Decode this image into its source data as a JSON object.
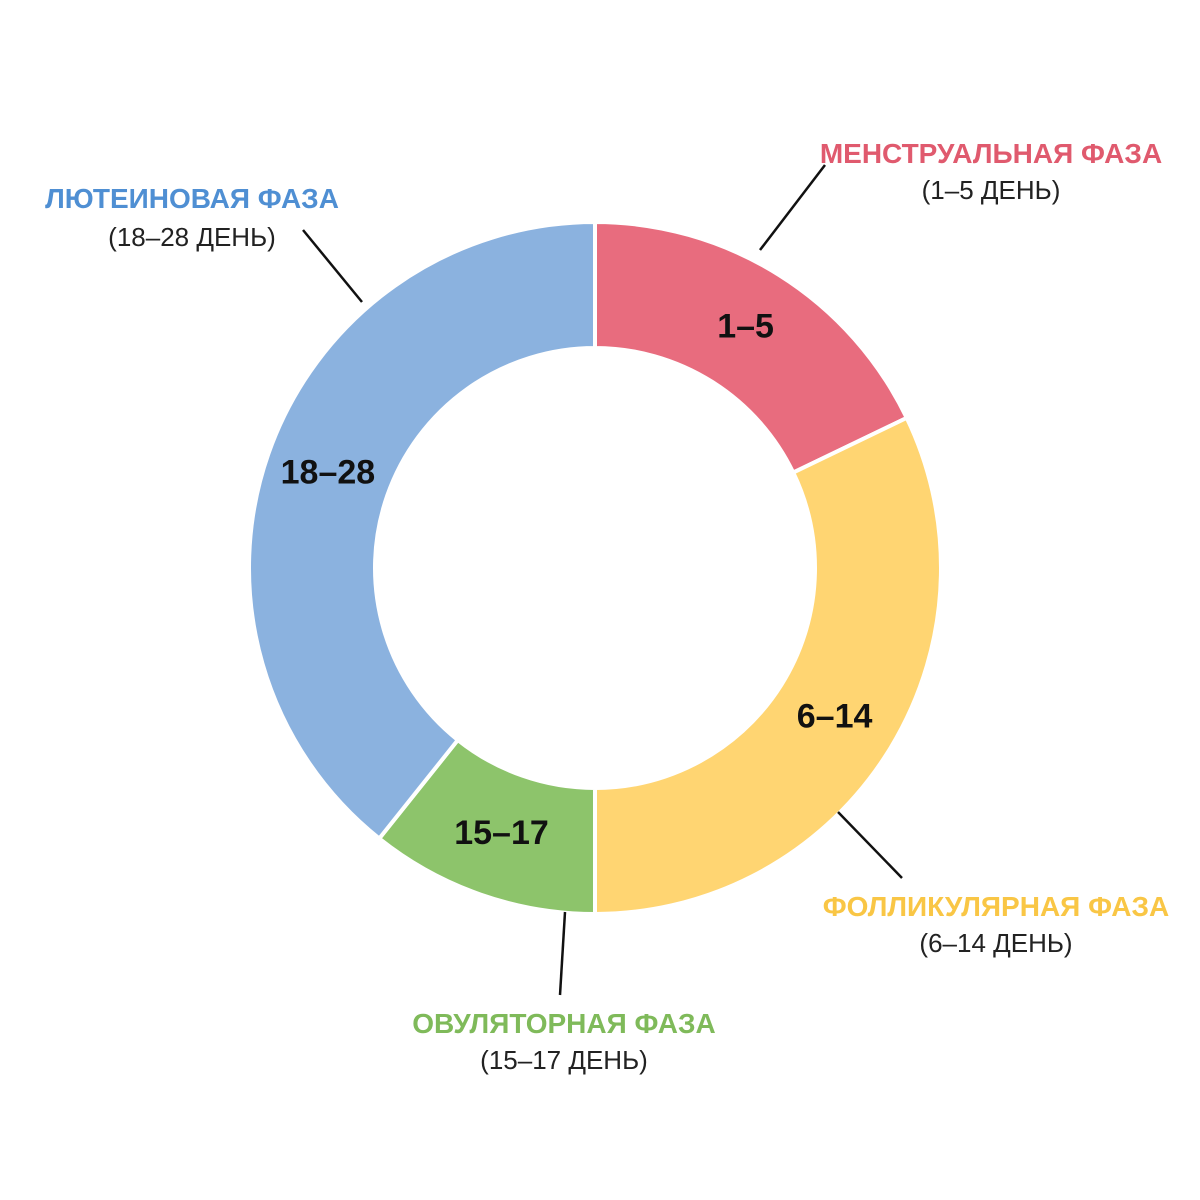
{
  "chart_data": {
    "type": "pie",
    "variant": "donut",
    "unit": "days",
    "total": 28,
    "slices": [
      {
        "id": "menstrual",
        "label": "1–5",
        "phase_name": "МЕНСТРУАЛЬНАЯ ФАЗА",
        "phase_days": "(1–5 ДЕНЬ)",
        "start_day": 1,
        "end_day": 5,
        "color": "#E86C7E",
        "text_color": "#E05A6E"
      },
      {
        "id": "follicular",
        "label": "6–14",
        "phase_name": "ФОЛЛИКУЛЯРНАЯ ФАЗА",
        "phase_days": "(6–14 ДЕНЬ)",
        "start_day": 6,
        "end_day": 14,
        "color": "#FFD572",
        "text_color": "#F9C645"
      },
      {
        "id": "ovulatory",
        "label": "15–17",
        "phase_name": "ОВУЛЯТОРНАЯ ФАЗА",
        "phase_days": "(15–17 ДЕНЬ)",
        "start_day": 15,
        "end_day": 17,
        "color": "#8DC46B",
        "text_color": "#7FBA5A"
      },
      {
        "id": "luteal",
        "label": "18–28",
        "phase_name": "ЛЮТЕИНОВАЯ ФАЗА",
        "phase_days": "(18–28 ДЕНЬ)",
        "start_day": 18,
        "end_day": 28,
        "color": "#8BB2DF",
        "text_color": "#4F8FD3"
      }
    ]
  }
}
